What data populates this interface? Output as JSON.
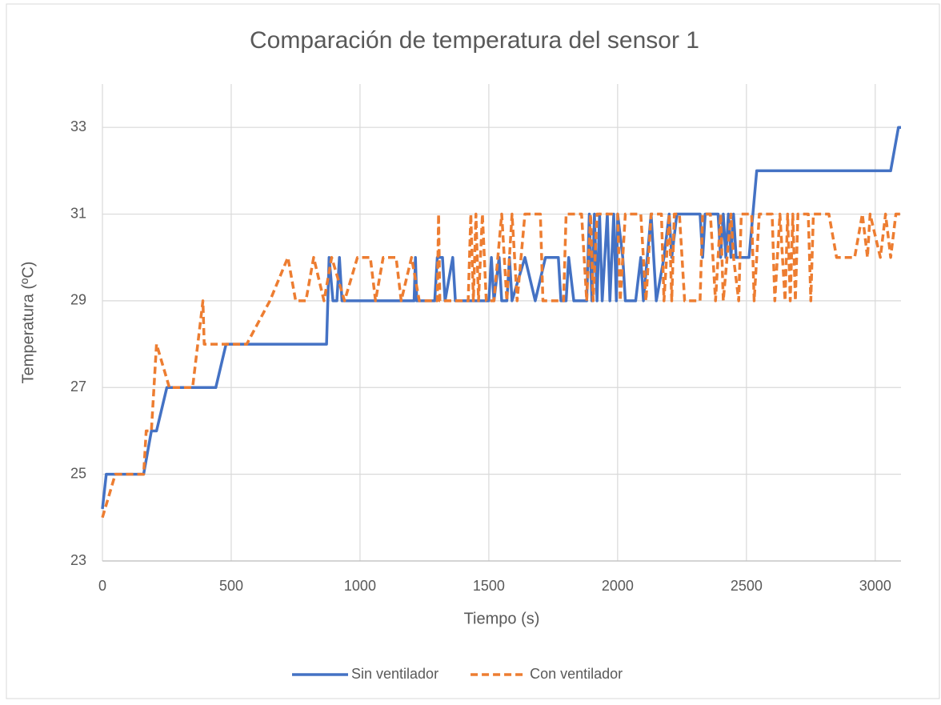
{
  "chart_data": {
    "type": "line",
    "title": "Comparación de temperatura del sensor 1",
    "xlabel": "Tiempo (s)",
    "ylabel": "Temperatura (ºC)",
    "xlim": [
      0,
      3100
    ],
    "xticks": [
      0,
      500,
      1000,
      1500,
      2000,
      2500,
      3000
    ],
    "ylim": [
      23,
      34
    ],
    "yticks": [
      23,
      25,
      27,
      29,
      31,
      33
    ],
    "grid": true,
    "legend": "bottom",
    "series": [
      {
        "name": "Sin ventilador",
        "color": "#4472c4",
        "dash": false,
        "x": [
          0,
          15,
          160,
          190,
          210,
          250,
          440,
          480,
          870,
          880,
          895,
          910,
          920,
          930,
          1210,
          1215,
          1220,
          1290,
          1300,
          1320,
          1330,
          1360,
          1370,
          1500,
          1510,
          1520,
          1540,
          1550,
          1570,
          1580,
          1590,
          1640,
          1680,
          1720,
          1770,
          1780,
          1800,
          1810,
          1830,
          1880,
          1890,
          1900,
          1910,
          1920,
          1930,
          1940,
          1960,
          1970,
          1985,
          1995,
          2000,
          2020,
          2030,
          2070,
          2090,
          2100,
          2130,
          2150,
          2180,
          2200,
          2210,
          2230,
          2320,
          2330,
          2340,
          2390,
          2400,
          2410,
          2420,
          2430,
          2440,
          2450,
          2460,
          2510,
          2540,
          3060,
          3090,
          3100
        ],
        "values": [
          24.2,
          25,
          25,
          26,
          26,
          27,
          27,
          28,
          28,
          30,
          29,
          29,
          30,
          29,
          29,
          30,
          29,
          29,
          30,
          30,
          29,
          30,
          29,
          29,
          30,
          29,
          30,
          29,
          29,
          30,
          29,
          30,
          29,
          30,
          30,
          29,
          29,
          30,
          29,
          29,
          31,
          29,
          31,
          29,
          31,
          29,
          31,
          29,
          31,
          29,
          31,
          30,
          29,
          29,
          30,
          29,
          31,
          29,
          30,
          31,
          30,
          31,
          31,
          30,
          31,
          31,
          30,
          31,
          30,
          31,
          30,
          31,
          30,
          30,
          32,
          32,
          33,
          33
        ]
      },
      {
        "name": "Con ventilador",
        "color": "#ed7d31",
        "dash": true,
        "x": [
          0,
          50,
          160,
          170,
          190,
          210,
          260,
          350,
          390,
          395,
          560,
          650,
          720,
          750,
          790,
          820,
          860,
          890,
          940,
          990,
          1040,
          1060,
          1090,
          1140,
          1160,
          1200,
          1230,
          1300,
          1305,
          1310,
          1420,
          1430,
          1440,
          1450,
          1460,
          1475,
          1490,
          1520,
          1550,
          1570,
          1590,
          1610,
          1640,
          1700,
          1710,
          1790,
          1800,
          1860,
          1880,
          1895,
          1905,
          1920,
          2000,
          2010,
          2030,
          2090,
          2110,
          2130,
          2170,
          2180,
          2200,
          2210,
          2220,
          2240,
          2260,
          2320,
          2330,
          2360,
          2380,
          2400,
          2410,
          2440,
          2450,
          2470,
          2480,
          2520,
          2530,
          2550,
          2600,
          2610,
          2630,
          2650,
          2660,
          2670,
          2680,
          2690,
          2700,
          2740,
          2750,
          2760,
          2820,
          2850,
          2920,
          2950,
          2970,
          2980,
          3020,
          3040,
          3060,
          3080,
          3100
        ],
        "values": [
          24,
          25,
          25,
          26,
          26,
          28,
          27,
          27,
          29,
          28,
          28,
          29,
          30,
          29,
          29,
          30,
          29,
          30,
          29,
          30,
          30,
          29,
          30,
          30,
          29,
          30,
          29,
          29,
          31,
          29,
          29,
          31,
          29,
          31,
          29,
          31,
          29,
          29,
          31,
          29,
          31,
          29,
          31,
          31,
          29,
          29,
          31,
          31,
          29,
          31,
          29,
          31,
          31,
          29,
          31,
          31,
          29,
          31,
          31,
          29,
          31,
          29,
          31,
          31,
          29,
          29,
          31,
          31,
          29,
          31,
          29,
          31,
          30,
          29,
          31,
          31,
          29,
          31,
          31,
          29,
          31,
          29,
          31,
          29,
          31,
          29,
          31,
          31,
          29,
          31,
          31,
          30,
          30,
          31,
          30,
          31,
          30,
          31,
          30,
          31,
          31
        ]
      }
    ]
  }
}
